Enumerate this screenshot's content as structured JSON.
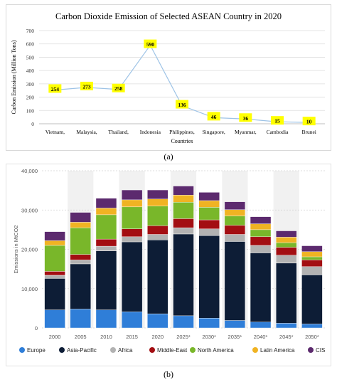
{
  "captions": {
    "a": "(a)",
    "b": "(b)"
  },
  "chart_data": [
    {
      "type": "line",
      "title": "Carbon Dioxide Emission of Selected ASEAN Country in 2020",
      "xlabel": "Countries",
      "ylabel": "Carbon Emission (Million Tons)",
      "ylim": [
        0,
        700
      ],
      "yticks": [
        0,
        100,
        200,
        300,
        400,
        500,
        600,
        700
      ],
      "categories": [
        "Vietnam,",
        "Malaysia,",
        "Thailand,",
        "Indonesia",
        "Philippines,",
        "Singapore,",
        "Myanmar,",
        "Cambodia",
        "Brunei"
      ],
      "values": [
        254,
        273,
        258,
        590,
        136,
        46,
        36,
        15,
        10
      ],
      "data_labels": [
        "254",
        "273",
        "258",
        "590",
        "136",
        "46",
        "36",
        "15",
        "10"
      ],
      "line_color": "#9dc3e6",
      "label_bg": "#ffff00",
      "grid": "horizontal"
    },
    {
      "type": "bar",
      "stacked": true,
      "ylabel": "Emissions in MtCO2",
      "ylim": [
        0,
        40000
      ],
      "yticks": [
        "0",
        "10,000",
        "20,000",
        "30,000",
        "40,000"
      ],
      "categories": [
        "2000",
        "2005",
        "2010",
        "2015",
        "2020",
        "2025*",
        "2030*",
        "2035*",
        "2040*",
        "2045*",
        "2050*"
      ],
      "shaded_columns": [
        "2005",
        "2015",
        "2025*",
        "2035*",
        "2045*"
      ],
      "legend_position": "bottom",
      "series": [
        {
          "name": "Europe",
          "color": "#2f7ed8",
          "values": [
            4600,
            4800,
            4600,
            4100,
            3600,
            3100,
            2500,
            1900,
            1500,
            1200,
            1000
          ]
        },
        {
          "name": "Asia-Pacific",
          "color": "#0d1d36",
          "values": [
            8000,
            11500,
            15000,
            17800,
            18800,
            20800,
            21000,
            20100,
            17600,
            15300,
            12500
          ]
        },
        {
          "name": "Africa",
          "color": "#b2b2b2",
          "values": [
            800,
            1000,
            1200,
            1300,
            1400,
            1600,
            1700,
            1800,
            1900,
            2000,
            2100
          ]
        },
        {
          "name": "Middle-East",
          "color": "#a30e12",
          "values": [
            1000,
            1400,
            1800,
            2000,
            2200,
            2300,
            2300,
            2300,
            2200,
            2000,
            1700
          ]
        },
        {
          "name": "North America",
          "color": "#79b72a",
          "values": [
            6600,
            6800,
            6200,
            5600,
            5000,
            4200,
            3200,
            2400,
            1800,
            1200,
            800
          ]
        },
        {
          "name": "Latin America",
          "color": "#f0b323",
          "values": [
            1200,
            1400,
            1700,
            1800,
            1800,
            1800,
            1700,
            1600,
            1500,
            1400,
            1300
          ]
        },
        {
          "name": "CIS",
          "color": "#5c2a6e",
          "values": [
            2300,
            2500,
            2500,
            2500,
            2300,
            2300,
            2100,
            2000,
            1800,
            1600,
            1500
          ]
        }
      ]
    }
  ]
}
